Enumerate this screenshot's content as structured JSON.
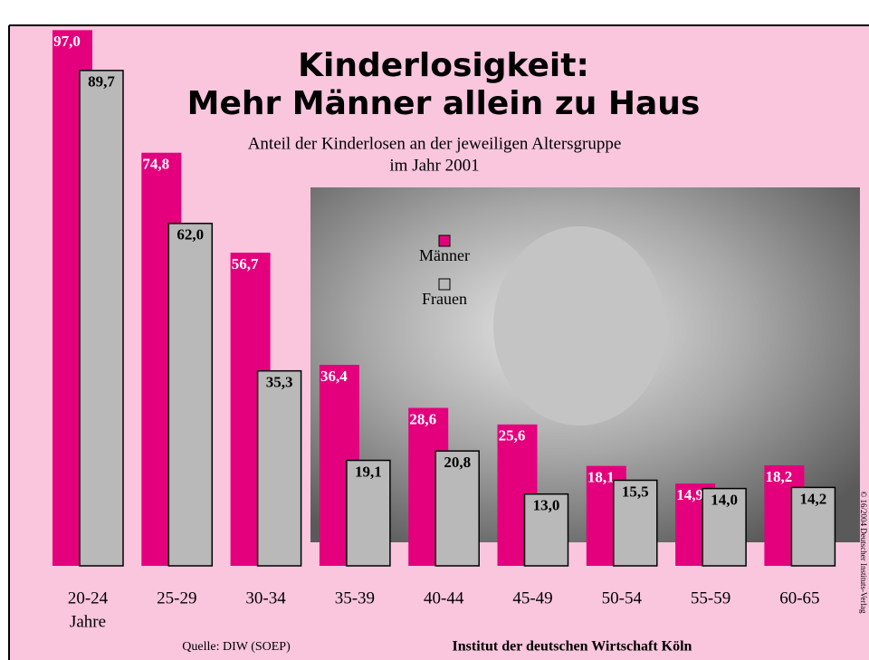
{
  "chart_data": {
    "type": "bar",
    "title": [
      "Kinderlosigkeit:",
      "Mehr Männer allein zu Haus"
    ],
    "subtitle": [
      "Anteil der Kinderlosen an der jeweiligen Altersgruppe",
      "im Jahr 2001"
    ],
    "categories": [
      "20-24",
      "25-29",
      "30-34",
      "35-39",
      "40-44",
      "45-49",
      "50-54",
      "55-59",
      "60-65"
    ],
    "x_unit": "Jahre",
    "series": [
      {
        "name": "Männer",
        "color": "#e4007c",
        "values": [
          97.0,
          74.8,
          56.7,
          36.4,
          28.6,
          25.6,
          18.1,
          14.9,
          18.2
        ],
        "value_labels": [
          "97,0",
          "74,8",
          "56,7",
          "36,4",
          "28,6",
          "25,6",
          "18,1",
          "14,9",
          "18,2"
        ]
      },
      {
        "name": "Frauen",
        "color": "#b9b9b9",
        "values": [
          89.7,
          62.0,
          35.3,
          19.1,
          20.8,
          13.0,
          15.5,
          14.0,
          14.2
        ],
        "value_labels": [
          "89,7",
          "62,0",
          "35,3",
          "19,1",
          "20,8",
          "13,0",
          "15,5",
          "14,0",
          "14,2"
        ]
      }
    ],
    "source": "Quelle: DIW (SOEP)",
    "publisher": "Institut der deutschen Wirtschaft Köln",
    "copyright": "© 16/2004 Deutscher Instituts-Verlag"
  }
}
